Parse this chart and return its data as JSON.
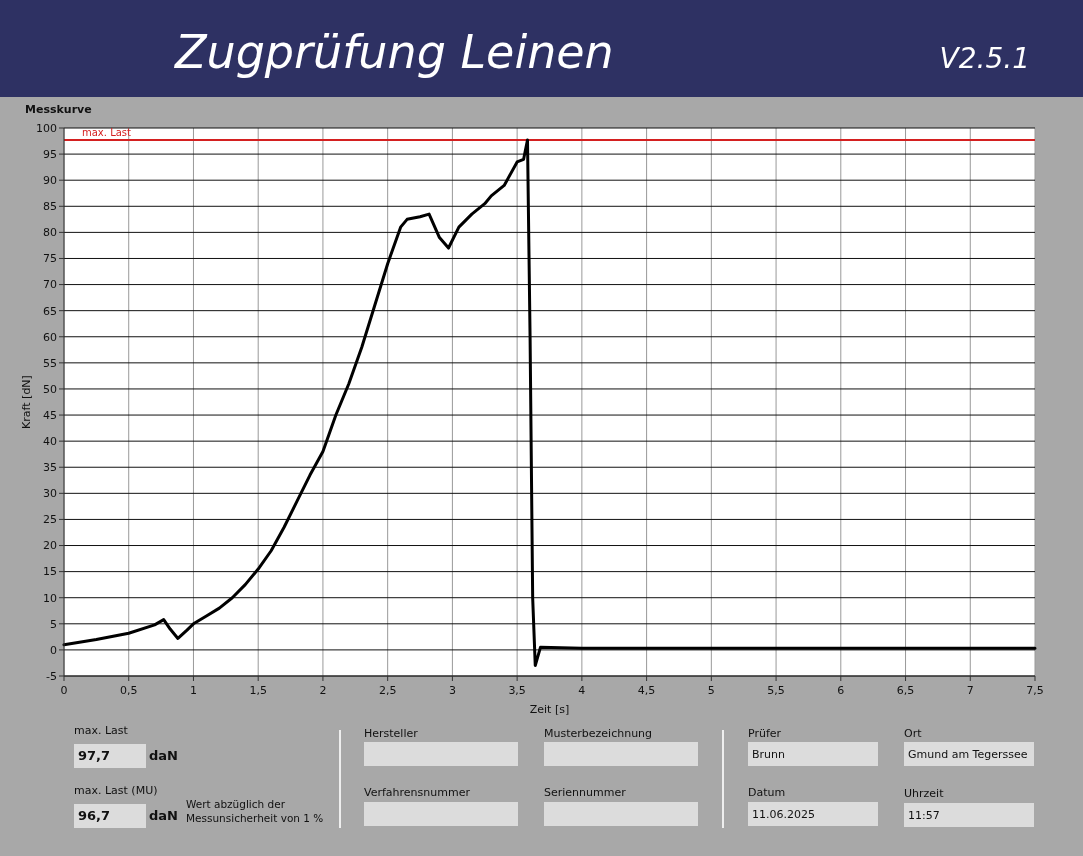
{
  "chart_data": {
    "type": "line",
    "title": "Messkurve",
    "xlabel": "Zeit [s]",
    "ylabel": "Kraft [dN]",
    "annotations": [
      "Zugprüfung Leinen",
      "V2.5.1",
      "max. Last",
      "97,7",
      "daN",
      "max. Last (MU)",
      "96,7",
      "daN",
      "Wert abzüglich der Messunsicherheit von 1 %",
      "Hersteller",
      "Musterbezeichnung",
      "Verfahrensnummer",
      "Seriennummer",
      "Prüfer",
      "Brunn",
      "Ort",
      "Gmund am Tegerssee",
      "Datum",
      "11.06.2025",
      "Uhrzeit",
      "11:57"
    ],
    "xlim": [
      0,
      7.5
    ],
    "ylim": [
      -5,
      100
    ],
    "xticks": [
      0,
      {
        "value": 0.5,
        "label": "0,5"
      },
      1,
      {
        "value": 1.5,
        "label": "1,5"
      },
      2,
      {
        "value": 2.5,
        "label": "2,5"
      },
      3,
      {
        "value": 3.5,
        "label": "3,5"
      },
      4,
      {
        "value": 4.5,
        "label": "4,5"
      },
      5,
      {
        "value": 5.5,
        "label": "5,5"
      },
      6,
      {
        "value": 6.5,
        "label": "6,5"
      },
      7,
      {
        "value": 7.5,
        "label": "7,5"
      }
    ],
    "yticks": [
      -5,
      0,
      5,
      10,
      15,
      20,
      25,
      30,
      35,
      40,
      45,
      50,
      55,
      60,
      65,
      70,
      75,
      80,
      85,
      90,
      95,
      100
    ],
    "grid": true,
    "ref_lines": [
      {
        "axis": "y",
        "value": 97.7,
        "label": "max. Last",
        "color": "#d42020"
      }
    ],
    "series": [
      {
        "color": "#000000",
        "x": [
          0,
          0.25,
          0.5,
          0.7,
          0.77,
          0.82,
          0.88,
          0.95,
          1.0,
          1.1,
          1.2,
          1.3,
          1.4,
          1.5,
          1.6,
          1.7,
          1.8,
          1.9,
          2.0,
          2.1,
          2.2,
          2.3,
          2.4,
          2.5,
          2.6,
          2.65,
          2.75,
          2.82,
          2.9,
          2.97,
          3.05,
          3.15,
          3.25,
          3.3,
          3.4,
          3.5,
          3.55,
          3.58,
          3.6,
          3.62,
          3.64,
          3.68,
          4,
          5,
          6,
          7,
          7.5
        ],
        "values": [
          1,
          2,
          3.2,
          4.8,
          5.8,
          4,
          2.2,
          3.8,
          5,
          6.5,
          8,
          10,
          12.5,
          15.5,
          19,
          23.5,
          28.5,
          33.5,
          38,
          45,
          51,
          58,
          66,
          74,
          81,
          82.5,
          83,
          83.5,
          79,
          77,
          81,
          83.5,
          85.5,
          87,
          89,
          93.5,
          94,
          97.7,
          60,
          10,
          -3,
          0.5,
          0.3,
          0.3,
          0.3,
          0.3,
          0.3
        ]
      }
    ]
  }
}
